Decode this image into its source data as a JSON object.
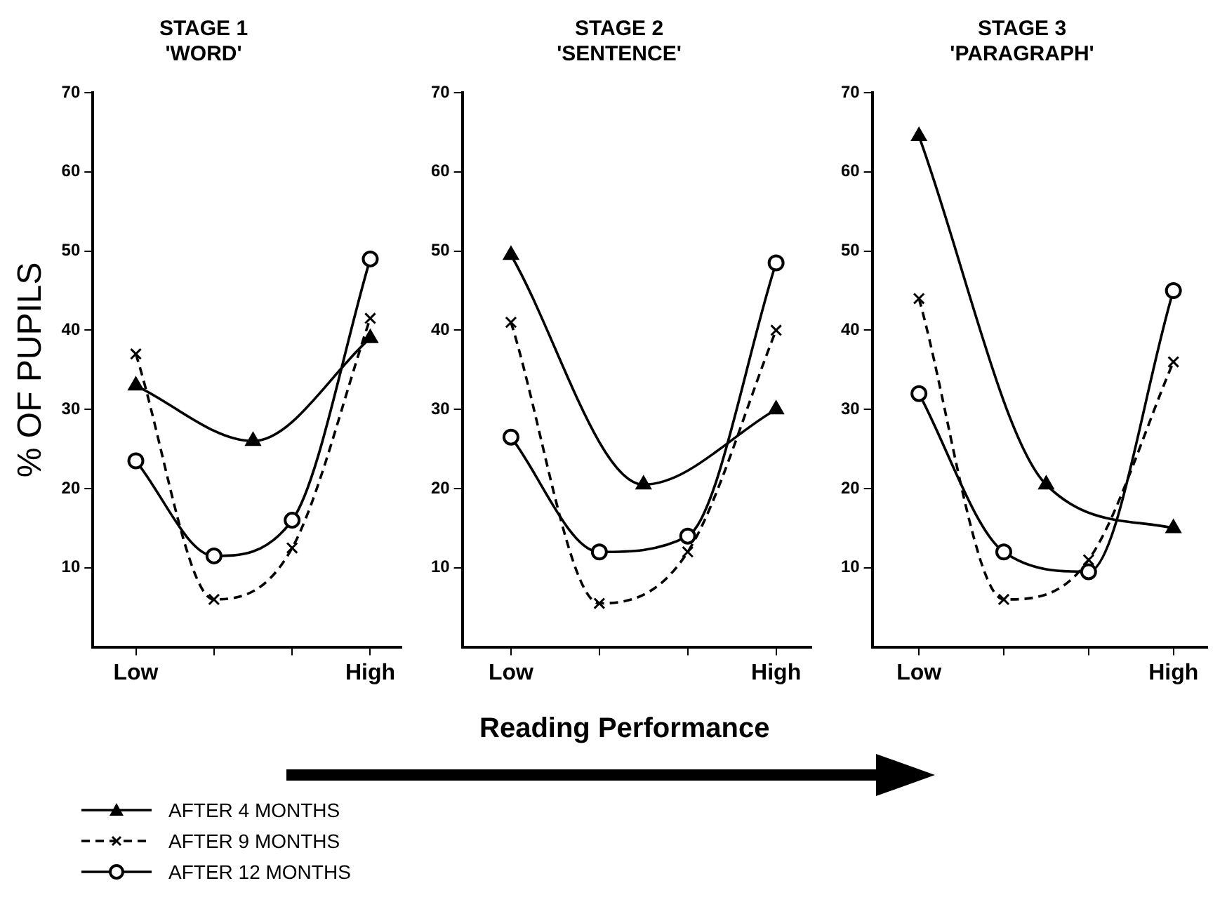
{
  "chart_data": [
    {
      "type": "line",
      "title": "STAGE 1\n'WORD'",
      "ylabel": "% OF PUPILS",
      "legend": "bottom left",
      "categories": [
        "Low",
        null,
        null,
        null,
        null,
        null,
        "High"
      ],
      "ylim": [
        0,
        70
      ],
      "yticks": [
        10,
        20,
        30,
        40,
        50,
        60,
        70
      ],
      "grid": false,
      "series": [
        {
          "name": "AFTER 4 MONTHS",
          "color": "#000000",
          "marker": "triangle",
          "line_style": "solid",
          "values": [
            33,
            null,
            null,
            26,
            null,
            null,
            39
          ]
        },
        {
          "name": "AFTER 9 MONTHS",
          "color": "#000000",
          "marker": "cross",
          "line_style": "dashed",
          "values": [
            37,
            null,
            6,
            null,
            12.5,
            null,
            41.5
          ]
        },
        {
          "name": "AFTER 12 MONTHS",
          "color": "#000000",
          "marker": "circle",
          "line_style": "solid",
          "values": [
            23.5,
            null,
            11.5,
            null,
            16,
            null,
            49
          ]
        }
      ]
    },
    {
      "type": "line",
      "title": "STAGE 2\n'SENTENCE'",
      "xlabel": "Reading Performance",
      "categories": [
        "Low",
        null,
        null,
        null,
        null,
        null,
        "High"
      ],
      "ylim": [
        0,
        70
      ],
      "yticks": [
        10,
        20,
        30,
        40,
        50,
        60,
        70
      ],
      "grid": false,
      "series": [
        {
          "color": "#000000",
          "marker": "triangle",
          "line_style": "solid",
          "values": [
            49.5,
            null,
            null,
            20.5,
            null,
            null,
            30
          ]
        },
        {
          "color": "#000000",
          "marker": "cross",
          "line_style": "dashed",
          "values": [
            41,
            null,
            5.5,
            null,
            12,
            null,
            40
          ]
        },
        {
          "color": "#000000",
          "marker": "circle",
          "line_style": "solid",
          "values": [
            26.5,
            null,
            12,
            null,
            14,
            null,
            48.5
          ]
        }
      ]
    },
    {
      "type": "line",
      "title": "STAGE 3\n'PARAGRAPH'",
      "categories": [
        "Low",
        null,
        null,
        null,
        null,
        null,
        "High"
      ],
      "ylim": [
        0,
        70
      ],
      "yticks": [
        10,
        20,
        30,
        40,
        50,
        60,
        70
      ],
      "grid": false,
      "series": [
        {
          "color": "#000000",
          "marker": "triangle",
          "line_style": "solid",
          "values": [
            64.5,
            null,
            null,
            20.5,
            null,
            null,
            15
          ]
        },
        {
          "color": "#000000",
          "marker": "cross",
          "line_style": "dashed",
          "values": [
            44,
            null,
            6,
            null,
            11,
            null,
            36
          ]
        },
        {
          "color": "#000000",
          "marker": "circle",
          "line_style": "solid",
          "values": [
            32,
            null,
            12,
            null,
            9.5,
            null,
            45
          ]
        }
      ]
    }
  ]
}
